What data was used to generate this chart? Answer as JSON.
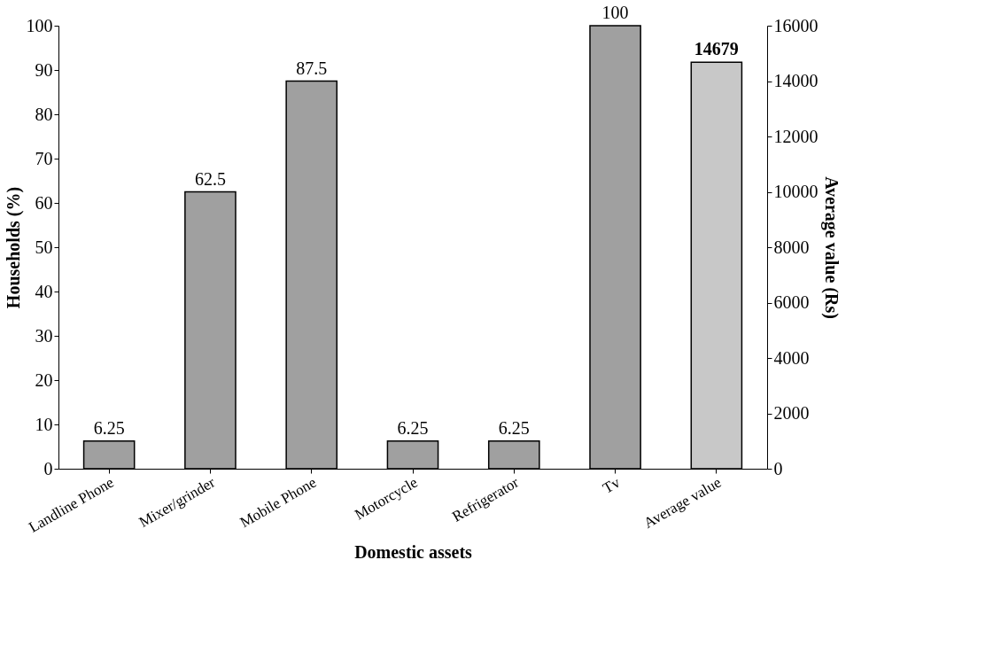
{
  "chart_data": {
    "type": "bar",
    "xlabel": "Domestic assets",
    "ylabel": "Households (%)",
    "y2label": "Average value (Rs)",
    "categories": [
      "Landline Phone",
      "Mixer/grinder",
      "Mobile Phone",
      "Motorcycle",
      "Refrigerator",
      "Tv",
      "Average value"
    ],
    "series": [
      {
        "color": "#a0a0a0",
        "values": [
          6.25,
          62.5,
          87.5,
          6.25,
          6.25,
          100,
          null
        ]
      },
      {
        "color": "#c8c8c8",
        "axis": "y2",
        "values": [
          null,
          null,
          null,
          null,
          null,
          null,
          14679
        ]
      }
    ],
    "ylim": [
      0,
      100
    ],
    "yticks": [
      0,
      10,
      20,
      30,
      40,
      50,
      60,
      70,
      80,
      90,
      100
    ],
    "y2lim": [
      0,
      16000
    ],
    "y2ticks": [
      0,
      2000,
      4000,
      6000,
      8000,
      10000,
      12000,
      14000,
      16000
    ],
    "data_labels": true,
    "grid": false,
    "legend": false
  }
}
